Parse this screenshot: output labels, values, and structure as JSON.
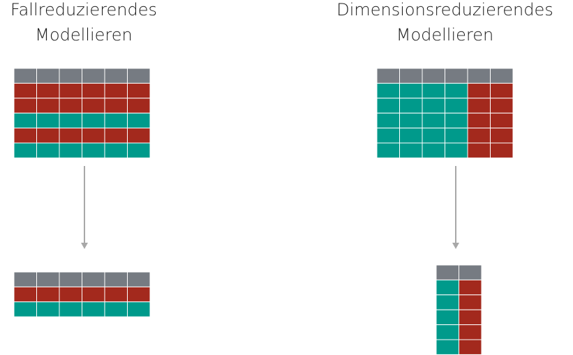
{
  "left_panel": {
    "title_line1": "Fallreduzierendes",
    "title_line2": "Modellieren"
  },
  "right_panel": {
    "title_line1": "Dimensionsreduzierendes",
    "title_line2": "Modellieren"
  },
  "colors": {
    "header": "#767b82",
    "red": "#a3291d",
    "teal": "#009a8b",
    "grid_line": "#ffffff",
    "arrow": "#a8a8a8"
  },
  "tables": {
    "left_before": {
      "columns": 6,
      "rows": [
        "red",
        "red",
        "teal",
        "red",
        "teal"
      ]
    },
    "left_after": {
      "columns": 6,
      "rows": [
        "red",
        "teal"
      ]
    },
    "right_before": {
      "columns": 6,
      "rows": 5,
      "column_colors": [
        "teal",
        "teal",
        "teal",
        "teal",
        "red",
        "red"
      ]
    },
    "right_after": {
      "columns": 2,
      "rows": 5,
      "column_colors": [
        "teal",
        "red"
      ]
    }
  }
}
